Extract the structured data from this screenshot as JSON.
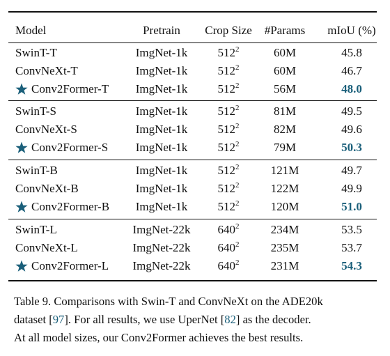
{
  "table": {
    "header": [
      "Model",
      "Pretrain",
      "Crop Size",
      "#Params",
      "mIoU (%)"
    ],
    "groups": [
      [
        {
          "model": "SwinT-T",
          "pretrain": "ImgNet-1k",
          "crop": {
            "base": "512",
            "exp": "2"
          },
          "params": "60M",
          "miou": "45.8"
        },
        {
          "model": "ConvNeXt-T",
          "pretrain": "ImgNet-1k",
          "crop": {
            "base": "512",
            "exp": "2"
          },
          "params": "60M",
          "miou": "46.7"
        },
        {
          "model": "Conv2Former-T",
          "pretrain": "ImgNet-1k",
          "crop": {
            "base": "512",
            "exp": "2"
          },
          "params": "56M",
          "miou": "48.0"
        }
      ],
      [
        {
          "model": "SwinT-S",
          "pretrain": "ImgNet-1k",
          "crop": {
            "base": "512",
            "exp": "2"
          },
          "params": "81M",
          "miou": "49.5"
        },
        {
          "model": "ConvNeXt-S",
          "pretrain": "ImgNet-1k",
          "crop": {
            "base": "512",
            "exp": "2"
          },
          "params": "82M",
          "miou": "49.6"
        },
        {
          "model": "Conv2Former-S",
          "pretrain": "ImgNet-1k",
          "crop": {
            "base": "512",
            "exp": "2"
          },
          "params": "79M",
          "miou": "50.3"
        }
      ],
      [
        {
          "model": "SwinT-B",
          "pretrain": "ImgNet-1k",
          "crop": {
            "base": "512",
            "exp": "2"
          },
          "params": "121M",
          "miou": "49.7"
        },
        {
          "model": "ConvNeXt-B",
          "pretrain": "ImgNet-1k",
          "crop": {
            "base": "512",
            "exp": "2"
          },
          "params": "122M",
          "miou": "49.9"
        },
        {
          "model": "Conv2Former-B",
          "pretrain": "ImgNet-1k",
          "crop": {
            "base": "512",
            "exp": "2"
          },
          "params": "120M",
          "miou": "51.0"
        }
      ],
      [
        {
          "model": "SwinT-L",
          "pretrain": "ImgNet-22k",
          "crop": {
            "base": "640",
            "exp": "2"
          },
          "params": "234M",
          "miou": "53.5"
        },
        {
          "model": "ConvNeXt-L",
          "pretrain": "ImgNet-22k",
          "crop": {
            "base": "640",
            "exp": "2"
          },
          "params": "235M",
          "miou": "53.7"
        },
        {
          "model": "Conv2Former-L",
          "pretrain": "ImgNet-22k",
          "crop": {
            "base": "640",
            "exp": "2"
          },
          "params": "231M",
          "miou": "54.3"
        }
      ]
    ]
  },
  "caption": {
    "lines": [
      [
        "Table 9. Comparisons with Swin-T and ConvNeXt on the ADE20k"
      ],
      [
        "dataset [",
        "97",
        "].  For all results, we use UperNet [",
        "82",
        "] as the decoder."
      ],
      [
        "At all model sizes, our Conv2Former achieves the best results."
      ]
    ]
  }
}
